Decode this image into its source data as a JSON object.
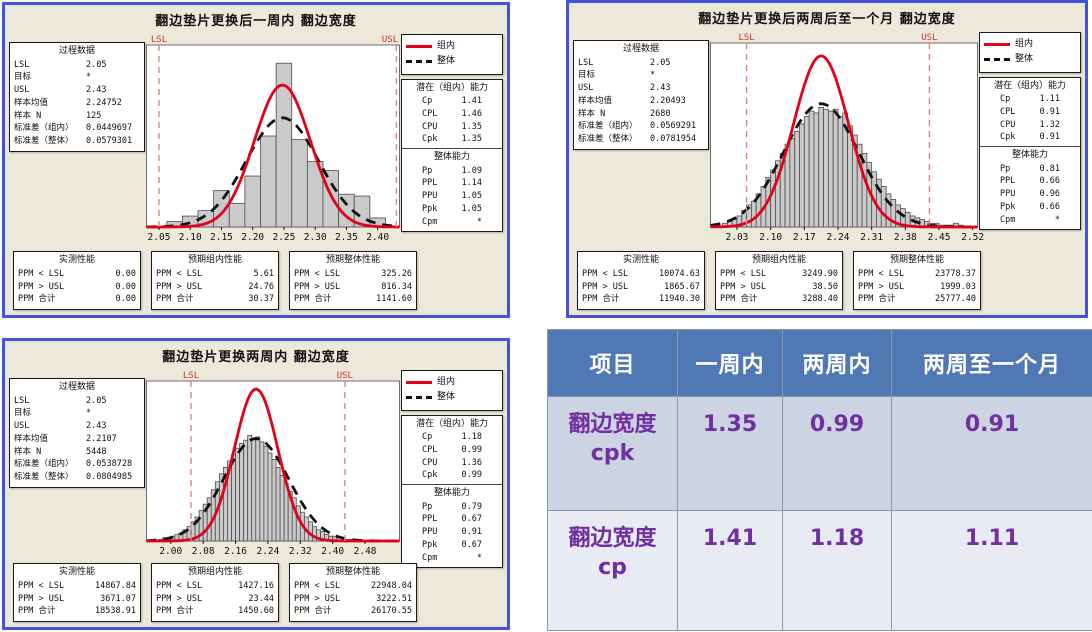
{
  "colors": {
    "chart_bg": "#ECE9DA",
    "chart_border_blue": "#4353E0",
    "within_curve_red": "#E2001A",
    "overall_curve_black": "#111111",
    "spec_line_pink": "#E88080",
    "spec_label_red": "#CC3333",
    "bar_fill": "#CACACA",
    "bar_stroke": "#4D4D4D",
    "table_header_blue": "#5078B4",
    "table_row1_bg": "#CCD3E2",
    "table_row2_bg": "#E9EBF4",
    "table_value_purple": "#7030A0"
  },
  "chart_data": [
    {
      "type": "histogram",
      "title": "翻边垫片更换后一周内  翻边宽度",
      "process_data": {
        "title": "过程数据",
        "rows": [
          [
            "LSL",
            "2.05"
          ],
          [
            "目标",
            "*"
          ],
          [
            "USL",
            "2.43"
          ],
          [
            "样本均值",
            "2.24752"
          ],
          [
            "样本 N",
            "125"
          ],
          [
            "标准差（组内）",
            "0.0449697"
          ],
          [
            "标准差（整体）",
            "0.0579301"
          ]
        ]
      },
      "legend": {
        "within": "组内",
        "overall": "整体"
      },
      "within_capability": {
        "title": "潜在（组内）能力",
        "rows": [
          [
            "Cp",
            "1.41"
          ],
          [
            "CPL",
            "1.46"
          ],
          [
            "CPU",
            "1.35"
          ],
          [
            "Cpk",
            "1.35"
          ]
        ]
      },
      "overall_capability": {
        "title": "整体能力",
        "rows": [
          [
            "Pp",
            "1.09"
          ],
          [
            "PPL",
            "1.14"
          ],
          [
            "PPU",
            "1.05"
          ],
          [
            "Ppk",
            "1.05"
          ],
          [
            "Cpm",
            "*"
          ]
        ]
      },
      "performance": [
        {
          "title": "实测性能",
          "rows": [
            [
              "PPM < LSL",
              "0.00"
            ],
            [
              "PPM > USL",
              "0.00"
            ],
            [
              "PPM 合计",
              "0.00"
            ]
          ]
        },
        {
          "title": "预期组内性能",
          "rows": [
            [
              "PPM < LSL",
              "5.61"
            ],
            [
              "PPM > USL",
              "24.76"
            ],
            [
              "PPM 合计",
              "30.37"
            ]
          ]
        },
        {
          "title": "预期整体性能",
          "rows": [
            [
              "PPM < LSL",
              "325.26"
            ],
            [
              "PPM > USL",
              "816.34"
            ],
            [
              "PPM 合计",
              "1141.60"
            ]
          ]
        }
      ],
      "plot": {
        "xmin": 2.03,
        "xmax": 2.435,
        "lsl": 2.05,
        "usl": 2.43,
        "lsl_label": "LSL",
        "usl_label": "USL",
        "ticks": [
          {
            "v": 2.05,
            "label": "2.05"
          },
          {
            "v": 2.1,
            "label": "2.10"
          },
          {
            "v": 2.15,
            "label": "2.15"
          },
          {
            "v": 2.2,
            "label": "2.20"
          },
          {
            "v": 2.25,
            "label": "2.25"
          },
          {
            "v": 2.3,
            "label": "2.30"
          },
          {
            "v": 2.35,
            "label": "2.35"
          },
          {
            "v": 2.4,
            "label": "2.40"
          }
        ],
        "bars": {
          "x0": 2.0625,
          "w": 0.025,
          "heights": [
            0.03,
            0.06,
            0.09,
            0.2,
            0.13,
            0.28,
            0.5,
            0.9,
            0.48,
            0.36,
            0.31,
            0.18,
            0.17,
            0.05
          ]
        },
        "curves": {
          "mean": 2.24752,
          "sd_within": 0.0449697,
          "sd_overall": 0.0579301,
          "peak_within": 0.78,
          "peak_overall": 0.6
        }
      }
    },
    {
      "type": "histogram",
      "title": "翻边垫片更换后两周后至一个月  翻边宽度",
      "process_data": {
        "title": "过程数据",
        "rows": [
          [
            "LSL",
            "2.05"
          ],
          [
            "目标",
            "*"
          ],
          [
            "USL",
            "2.43"
          ],
          [
            "样本均值",
            "2.20493"
          ],
          [
            "样本 N",
            "2680"
          ],
          [
            "标准差（组内）",
            "0.0569291"
          ],
          [
            "标准差（整体）",
            "0.0781954"
          ]
        ]
      },
      "legend": {
        "within": "组内",
        "overall": "整体"
      },
      "within_capability": {
        "title": "潜在（组内）能力",
        "rows": [
          [
            "Cp",
            "1.11"
          ],
          [
            "CPL",
            "0.91"
          ],
          [
            "CPU",
            "1.32"
          ],
          [
            "Cpk",
            "0.91"
          ]
        ]
      },
      "overall_capability": {
        "title": "整体能力",
        "rows": [
          [
            "Pp",
            "0.81"
          ],
          [
            "PPL",
            "0.66"
          ],
          [
            "PPU",
            "0.96"
          ],
          [
            "Ppk",
            "0.66"
          ],
          [
            "Cpm",
            "*"
          ]
        ]
      },
      "performance": [
        {
          "title": "实测性能",
          "rows": [
            [
              "PPM < LSL",
              "10074.63"
            ],
            [
              "PPM > USL",
              "1865.67"
            ],
            [
              "PPM 合计",
              "11940.30"
            ]
          ]
        },
        {
          "title": "预期组内性能",
          "rows": [
            [
              "PPM < LSL",
              "3249.90"
            ],
            [
              "PPM > USL",
              "38.50"
            ],
            [
              "PPM 合计",
              "3288.40"
            ]
          ]
        },
        {
          "title": "预期整体性能",
          "rows": [
            [
              "PPM < LSL",
              "23778.37"
            ],
            [
              "PPM > USL",
              "1999.03"
            ],
            [
              "PPM 合计",
              "25777.40"
            ]
          ]
        }
      ],
      "plot": {
        "xmin": 1.975,
        "xmax": 2.53,
        "lsl": 2.05,
        "usl": 2.43,
        "lsl_label": "LSL",
        "usl_label": "USL",
        "ticks": [
          {
            "v": 2.03,
            "label": "2.03"
          },
          {
            "v": 2.1,
            "label": "2.10"
          },
          {
            "v": 2.17,
            "label": "2.17"
          },
          {
            "v": 2.24,
            "label": "2.24"
          },
          {
            "v": 2.31,
            "label": "2.31"
          },
          {
            "v": 2.38,
            "label": "2.38"
          },
          {
            "v": 2.45,
            "label": "2.45"
          },
          {
            "v": 2.52,
            "label": "2.52"
          }
        ],
        "bars": {
          "x0": 2.0,
          "w": 0.01,
          "heights": [
            0.02,
            0.03,
            0.04,
            0.06,
            0.09,
            0.12,
            0.14,
            0.18,
            0.22,
            0.27,
            0.31,
            0.36,
            0.4,
            0.45,
            0.48,
            0.52,
            0.56,
            0.6,
            0.63,
            0.62,
            0.65,
            0.64,
            0.63,
            0.64,
            0.6,
            0.62,
            0.55,
            0.5,
            0.45,
            0.4,
            0.35,
            0.3,
            0.26,
            0.22,
            0.18,
            0.15,
            0.12,
            0.1,
            0.08,
            0.06,
            0.05,
            0.04,
            0.03,
            0.02,
            0.02,
            0.01,
            0.01,
            0.01,
            0.02,
            0.01
          ]
        },
        "curves": {
          "mean": 2.20493,
          "sd_within": 0.0569291,
          "sd_overall": 0.0781954,
          "peak_within": 0.93,
          "peak_overall": 0.67
        }
      }
    },
    {
      "type": "histogram",
      "title": "翻边垫片更换两周内  翻边宽度",
      "process_data": {
        "title": "过程数据",
        "rows": [
          [
            "LSL",
            "2.05"
          ],
          [
            "目标",
            "*"
          ],
          [
            "USL",
            "2.43"
          ],
          [
            "样本均值",
            "2.2107"
          ],
          [
            "样本 N",
            "5448"
          ],
          [
            "标准差（组内）",
            "0.0538728"
          ],
          [
            "标准差（整体）",
            "0.0804985"
          ]
        ]
      },
      "legend": {
        "within": "组内",
        "overall": "整体"
      },
      "within_capability": {
        "title": "潜在（组内）能力",
        "rows": [
          [
            "Cp",
            "1.18"
          ],
          [
            "CPL",
            "0.99"
          ],
          [
            "CPU",
            "1.36"
          ],
          [
            "Cpk",
            "0.99"
          ]
        ]
      },
      "overall_capability": {
        "title": "整体能力",
        "rows": [
          [
            "Pp",
            "0.79"
          ],
          [
            "PPL",
            "0.67"
          ],
          [
            "PPU",
            "0.91"
          ],
          [
            "Ppk",
            "0.67"
          ],
          [
            "Cpm",
            "*"
          ]
        ]
      },
      "performance": [
        {
          "title": "实测性能",
          "rows": [
            [
              "PPM < LSL",
              "14867.84"
            ],
            [
              "PPM > USL",
              "3671.07"
            ],
            [
              "PPM 合计",
              "18538.91"
            ]
          ]
        },
        {
          "title": "预期组内性能",
          "rows": [
            [
              "PPM < LSL",
              "1427.16"
            ],
            [
              "PPM > USL",
              "23.44"
            ],
            [
              "PPM 合计",
              "1450.60"
            ]
          ]
        },
        {
          "title": "预期整体性能",
          "rows": [
            [
              "PPM < LSL",
              "22948.04"
            ],
            [
              "PPM > USL",
              "3222.51"
            ],
            [
              "PPM 合计",
              "26170.55"
            ]
          ]
        }
      ],
      "plot": {
        "xmin": 1.94,
        "xmax": 2.565,
        "lsl": 2.05,
        "usl": 2.43,
        "lsl_label": "LSL",
        "usl_label": "USL",
        "ticks": [
          {
            "v": 2.0,
            "label": "2.00"
          },
          {
            "v": 2.08,
            "label": "2.08"
          },
          {
            "v": 2.16,
            "label": "2.16"
          },
          {
            "v": 2.24,
            "label": "2.24"
          },
          {
            "v": 2.32,
            "label": "2.32"
          },
          {
            "v": 2.4,
            "label": "2.40"
          },
          {
            "v": 2.48,
            "label": "2.48"
          }
        ],
        "bars": {
          "x0": 1.97,
          "w": 0.01,
          "heights": [
            0.01,
            0.02,
            0.02,
            0.03,
            0.04,
            0.05,
            0.07,
            0.09,
            0.12,
            0.15,
            0.19,
            0.23,
            0.27,
            0.32,
            0.37,
            0.42,
            0.46,
            0.5,
            0.54,
            0.58,
            0.61,
            0.63,
            0.66,
            0.64,
            0.65,
            0.62,
            0.59,
            0.55,
            0.51,
            0.46,
            0.41,
            0.36,
            0.31,
            0.27,
            0.22,
            0.18,
            0.15,
            0.12,
            0.09,
            0.07,
            0.06,
            0.04,
            0.03,
            0.03,
            0.02,
            0.02,
            0.01,
            0.01,
            0.01,
            0.01
          ]
        },
        "curves": {
          "mean": 2.2107,
          "sd_within": 0.0538728,
          "sd_overall": 0.0804985,
          "peak_within": 0.95,
          "peak_overall": 0.64
        }
      }
    }
  ],
  "summary_table": {
    "header": [
      "项目",
      "一周内",
      "两周内",
      "两周至一个月"
    ],
    "rows": [
      {
        "label": "翻边宽度\ncpk",
        "values": [
          "1.35",
          "0.99",
          "0.91"
        ]
      },
      {
        "label": "翻边宽度\ncp",
        "values": [
          "1.41",
          "1.18",
          "1.11"
        ]
      }
    ]
  }
}
